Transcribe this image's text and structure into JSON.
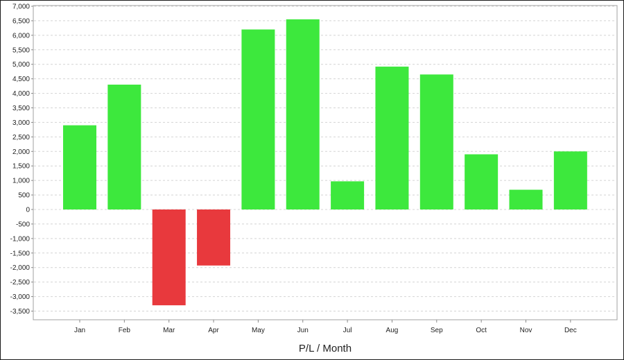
{
  "chart_data": {
    "type": "bar",
    "title": "",
    "xlabel": "P/L / Month",
    "ylabel": "",
    "ylim": [
      -3750,
      7000
    ],
    "y_ticks": [
      7000,
      6500,
      6000,
      5500,
      5000,
      4500,
      4000,
      3500,
      3000,
      2500,
      2000,
      1500,
      1000,
      500,
      0,
      -500,
      -1000,
      -1500,
      -2000,
      -2500,
      -3000,
      -3500
    ],
    "y_tick_labels": [
      "7,000",
      "6,500",
      "6,000",
      "5,500",
      "5,000",
      "4,500",
      "4,000",
      "3,500",
      "3,000",
      "2,500",
      "2,000",
      "1,500",
      "1,000",
      "500",
      "0",
      "-500",
      "-1,000",
      "-1,500",
      "-2,000",
      "-2,500",
      "-3,000",
      "-3,500"
    ],
    "categories": [
      "Jan",
      "Feb",
      "Mar",
      "Apr",
      "May",
      "Jun",
      "Jul",
      "Aug",
      "Sep",
      "Oct",
      "Nov",
      "Dec"
    ],
    "values": [
      2900,
      4300,
      -3300,
      -1930,
      6200,
      6550,
      970,
      4920,
      4650,
      1900,
      680,
      2000
    ],
    "grid": true,
    "colors": {
      "positive": "#3de83d",
      "negative": "#e8393d",
      "grid": "#d4d4d4",
      "axis": "#888888"
    }
  }
}
